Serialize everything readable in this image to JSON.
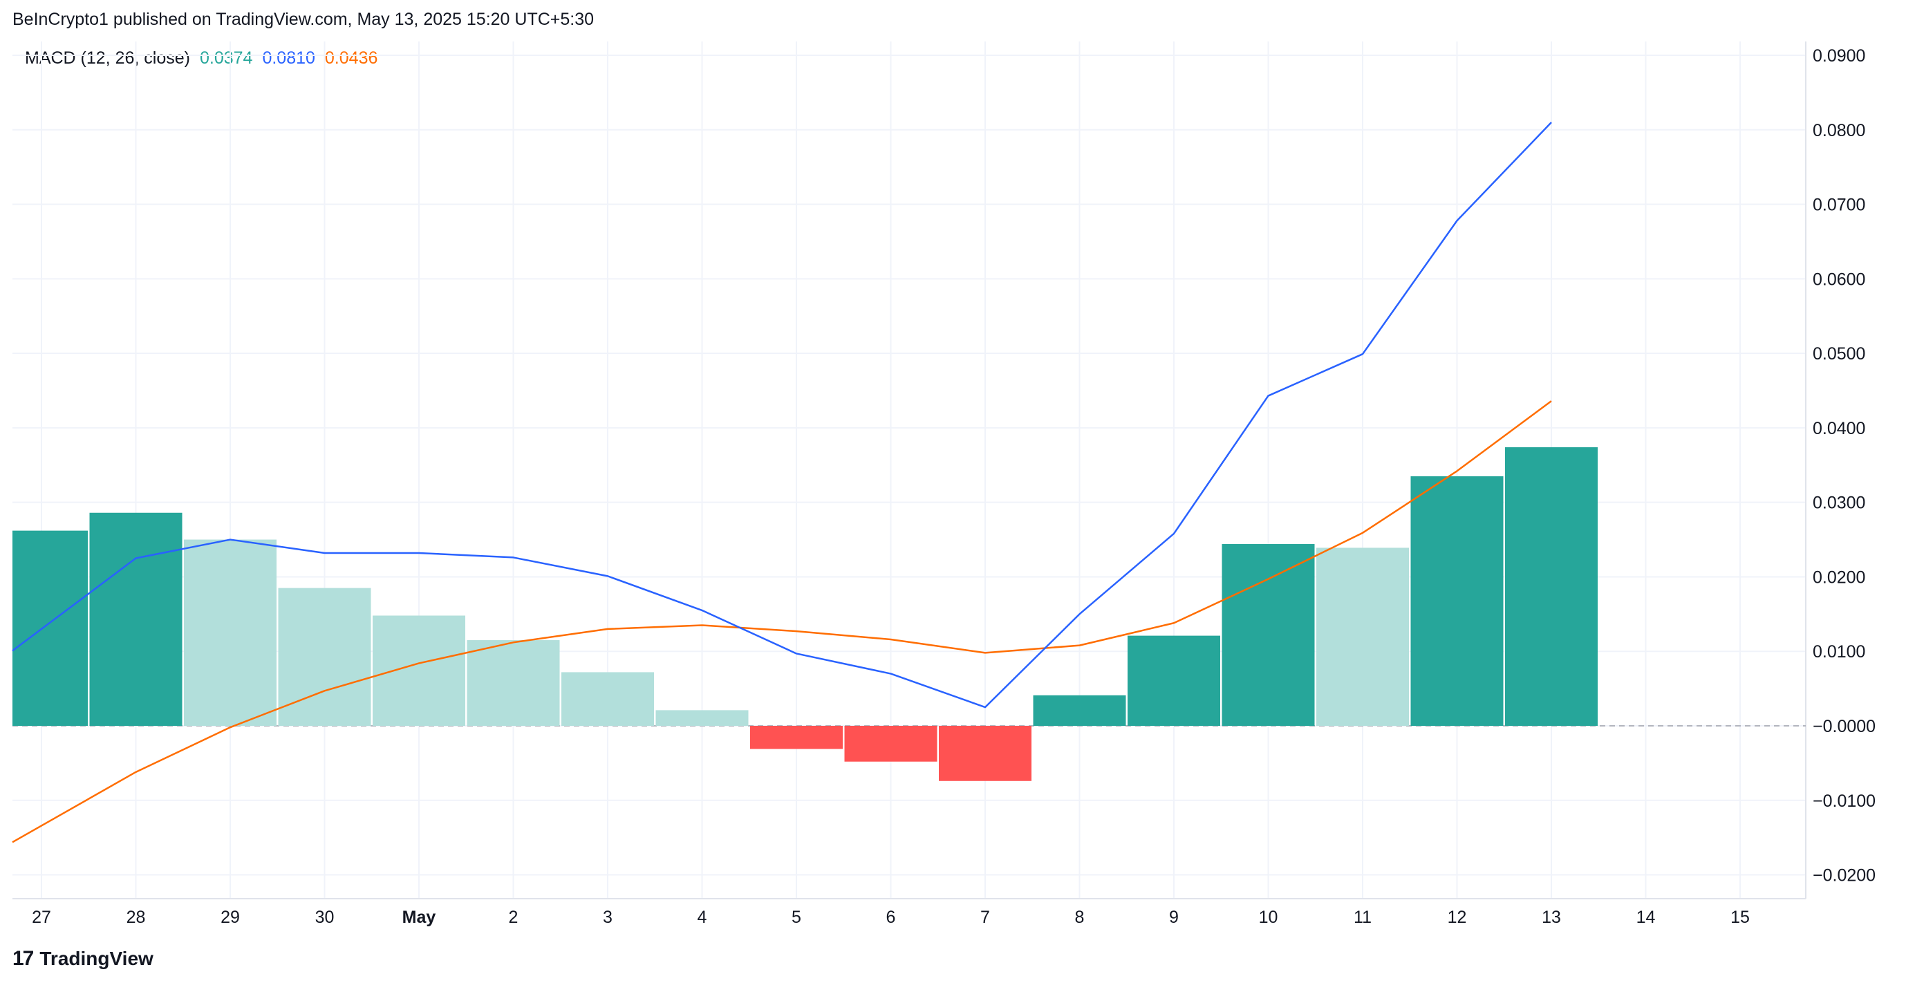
{
  "header": {
    "published": "BeInCrypto1 published on TradingView.com, May 13, 2025 15:20 UTC+5:30"
  },
  "legend": {
    "indicator": "MACD (12, 26, close)",
    "histogram_value": "0.0374",
    "macd_value": "0.0810",
    "signal_value": "0.0436"
  },
  "brand": {
    "logo_mark": "17",
    "name": "TradingView"
  },
  "colors": {
    "hist_up_strong": "#26a69a",
    "hist_up_weak": "#b2dfdb",
    "hist_down_strong": "#ff5252",
    "hist_down_weak": "#ffcdd2",
    "macd_line": "#2962ff",
    "signal_line": "#ff6d00",
    "grid": "#f0f3fa",
    "zero_line": "#b2b5be"
  },
  "chart_data": {
    "type": "bar",
    "x_tick_labels": [
      "27",
      "28",
      "29",
      "30",
      "May",
      "2",
      "3",
      "4",
      "5",
      "6",
      "7",
      "8",
      "9",
      "10",
      "11",
      "12",
      "13",
      "14",
      "15"
    ],
    "y_tick_labels": [
      "0.0900",
      "0.0800",
      "0.0700",
      "0.0600",
      "0.0500",
      "0.0400",
      "0.0300",
      "0.0200",
      "0.0100",
      "−0.0000",
      "−0.0100",
      "−0.0200"
    ],
    "y_ticks": [
      0.09,
      0.08,
      0.07,
      0.06,
      0.05,
      0.04,
      0.03,
      0.02,
      0.01,
      0.0,
      -0.01,
      -0.02
    ],
    "ylim": [
      -0.0225,
      0.0925
    ],
    "grid": true,
    "series": [
      {
        "name": "Histogram",
        "type": "bar",
        "values": [
          0.0262,
          0.0286,
          0.025,
          0.0185,
          0.0148,
          0.0115,
          0.0072,
          0.0021,
          -0.0031,
          -0.0048,
          -0.0074,
          0.0041,
          0.0121,
          0.0244,
          0.0239,
          0.0335,
          0.0374,
          null,
          null
        ]
      },
      {
        "name": "MACD",
        "type": "line",
        "values": [
          0.013,
          0.0225,
          0.025,
          0.0232,
          0.0232,
          0.0226,
          0.0201,
          0.0155,
          0.0097,
          0.007,
          0.0025,
          0.015,
          0.0258,
          0.0443,
          0.0499,
          0.0678,
          0.081,
          null,
          null
        ]
      },
      {
        "name": "Signal",
        "type": "line",
        "values": [
          -0.0134,
          -0.0062,
          -0.0002,
          0.0047,
          0.0084,
          0.0112,
          0.013,
          0.0135,
          0.0127,
          0.0116,
          0.0098,
          0.0108,
          0.0138,
          0.0197,
          0.0259,
          0.0342,
          0.0436,
          null,
          null
        ]
      }
    ]
  }
}
